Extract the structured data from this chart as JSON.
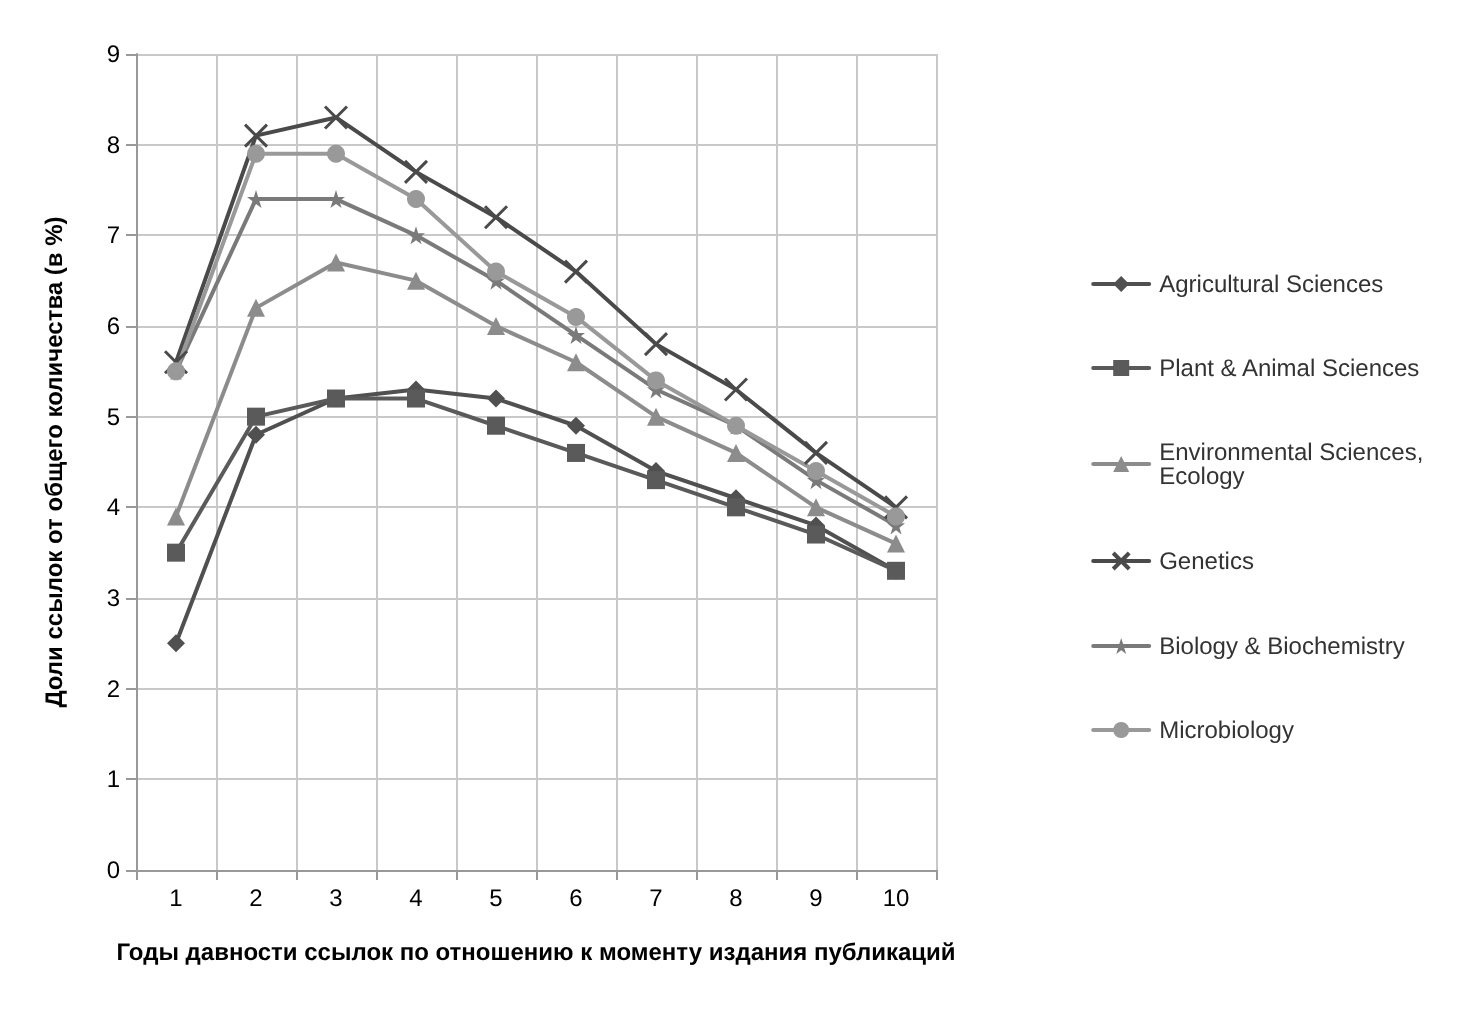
{
  "chart_data": {
    "type": "line",
    "xlabel": "Годы давности ссылок по отношению к моменту издания публикаций",
    "ylabel": "Доли ссылок от общего количества (в %)",
    "categories": [
      "1",
      "2",
      "3",
      "4",
      "5",
      "6",
      "7",
      "8",
      "9",
      "10"
    ],
    "series": [
      {
        "name": "Agricultural Sciences",
        "color": "#505050",
        "marker": "diamond",
        "values": [
          2.5,
          4.8,
          5.2,
          5.3,
          5.2,
          4.9,
          4.4,
          4.1,
          3.8,
          3.3
        ]
      },
      {
        "name": "Plant & Animal Sciences",
        "color": "#5a5a5a",
        "marker": "square",
        "values": [
          3.5,
          5.0,
          5.2,
          5.2,
          4.9,
          4.6,
          4.3,
          4.0,
          3.7,
          3.3
        ]
      },
      {
        "name": "Environmental Sciences, Ecology",
        "color": "#8c8c8c",
        "marker": "triangle",
        "values": [
          3.9,
          6.2,
          6.7,
          6.5,
          6.0,
          5.6,
          5.0,
          4.6,
          4.0,
          3.6
        ]
      },
      {
        "name": "Genetics",
        "color": "#4a4a4a",
        "marker": "cross",
        "values": [
          5.6,
          8.1,
          8.3,
          7.7,
          7.2,
          6.6,
          5.8,
          5.3,
          4.6,
          4.0
        ]
      },
      {
        "name": "Biology & Biochemistry",
        "color": "#7a7a7a",
        "marker": "star",
        "values": [
          5.5,
          7.4,
          7.4,
          7.0,
          6.5,
          5.9,
          5.3,
          4.9,
          4.3,
          3.8
        ]
      },
      {
        "name": "Microbiology",
        "color": "#999999",
        "marker": "circle",
        "values": [
          5.5,
          7.9,
          7.9,
          7.4,
          6.6,
          6.1,
          5.4,
          4.9,
          4.4,
          3.9
        ]
      }
    ],
    "ylim": [
      0,
      9
    ],
    "yticks": [
      0,
      1,
      2,
      3,
      4,
      5,
      6,
      7,
      8,
      9
    ],
    "grid": true,
    "legend": "right"
  }
}
